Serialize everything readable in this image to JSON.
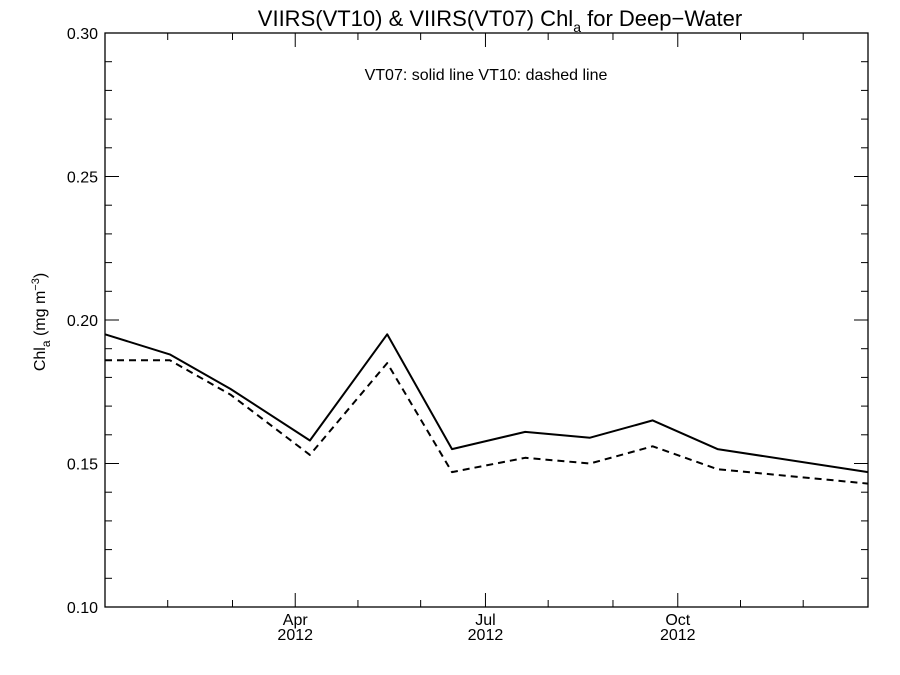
{
  "chart_data": {
    "type": "line",
    "title": {
      "main": "VIIRS(VT10) & VIIRS(VT07)  Chl",
      "sub": "a",
      "rest": " for Deep−Water"
    },
    "ylabel": {
      "base": "Chl",
      "sub": "a",
      "unit": " (mg m",
      "sup": "−3",
      "close": ")"
    },
    "annotation": "VT07: solid line   VT10: dashed line",
    "ylim": [
      0.1,
      0.3
    ],
    "yticks": [
      "0.10",
      "0.15",
      "0.20",
      "0.25",
      "0.30"
    ],
    "xlim": [
      "2012-01-01",
      "2012-12-31"
    ],
    "xticks": [
      {
        "date": "2012-04-01",
        "month": "Apr",
        "year": "2012"
      },
      {
        "date": "2012-07-01",
        "month": "Jul",
        "year": "2012"
      },
      {
        "date": "2012-10-01",
        "month": "Oct",
        "year": "2012"
      }
    ],
    "x": [
      "2012-01-01",
      "2012-02-01",
      "2012-03-01",
      "2012-04-08",
      "2012-05-15",
      "2012-06-15",
      "2012-07-20",
      "2012-08-20",
      "2012-09-19",
      "2012-10-20",
      "2012-12-31"
    ],
    "series": [
      {
        "name": "VT07",
        "style": "solid",
        "values": [
          0.195,
          0.188,
          0.176,
          0.158,
          0.195,
          0.155,
          0.161,
          0.159,
          0.165,
          0.155,
          0.147
        ]
      },
      {
        "name": "VT10",
        "style": "dashed",
        "values": [
          0.186,
          0.186,
          0.174,
          0.153,
          0.185,
          0.147,
          0.152,
          0.15,
          0.156,
          0.148,
          0.143
        ]
      }
    ]
  }
}
